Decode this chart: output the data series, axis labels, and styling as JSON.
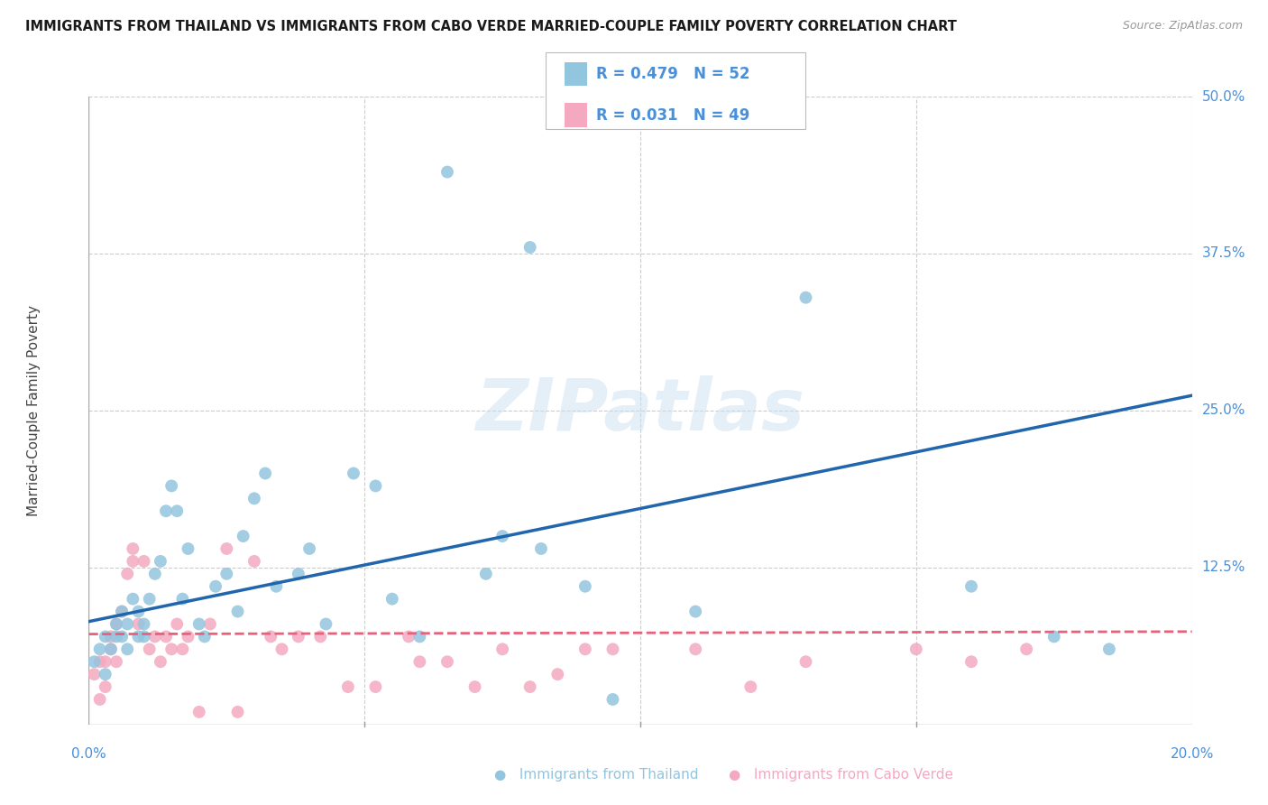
{
  "title": "IMMIGRANTS FROM THAILAND VS IMMIGRANTS FROM CABO VERDE MARRIED-COUPLE FAMILY POVERTY CORRELATION CHART",
  "source": "Source: ZipAtlas.com",
  "ylabel": "Married-Couple Family Poverty",
  "xlim": [
    0,
    0.2
  ],
  "ylim": [
    0,
    0.5
  ],
  "xticks": [
    0.0,
    0.05,
    0.1,
    0.15,
    0.2
  ],
  "yticks": [
    0.0,
    0.125,
    0.25,
    0.375,
    0.5
  ],
  "yticklabels": [
    "",
    "12.5%",
    "25.0%",
    "37.5%",
    "50.0%"
  ],
  "thailand_color": "#92c5de",
  "caboverde_color": "#f4a9c0",
  "trend_thailand_color": "#2166ac",
  "trend_caboverde_color": "#e8607a",
  "R_thailand": 0.479,
  "N_thailand": 52,
  "R_caboverde": 0.031,
  "N_caboverde": 49,
  "watermark": "ZIPatlas",
  "background_color": "#ffffff",
  "grid_color": "#cccccc",
  "title_color": "#1a1a1a",
  "axis_label_color": "#4a90d9",
  "thailand_x": [
    0.001,
    0.002,
    0.003,
    0.003,
    0.004,
    0.005,
    0.005,
    0.006,
    0.006,
    0.007,
    0.007,
    0.008,
    0.009,
    0.009,
    0.01,
    0.01,
    0.011,
    0.012,
    0.013,
    0.014,
    0.015,
    0.016,
    0.017,
    0.018,
    0.02,
    0.021,
    0.023,
    0.025,
    0.027,
    0.028,
    0.03,
    0.032,
    0.034,
    0.038,
    0.04,
    0.043,
    0.048,
    0.052,
    0.055,
    0.06,
    0.065,
    0.072,
    0.075,
    0.08,
    0.082,
    0.09,
    0.095,
    0.11,
    0.13,
    0.16,
    0.175,
    0.185
  ],
  "thailand_y": [
    0.05,
    0.06,
    0.04,
    0.07,
    0.06,
    0.07,
    0.08,
    0.07,
    0.09,
    0.06,
    0.08,
    0.1,
    0.07,
    0.09,
    0.07,
    0.08,
    0.1,
    0.12,
    0.13,
    0.17,
    0.19,
    0.17,
    0.1,
    0.14,
    0.08,
    0.07,
    0.11,
    0.12,
    0.09,
    0.15,
    0.18,
    0.2,
    0.11,
    0.12,
    0.14,
    0.08,
    0.2,
    0.19,
    0.1,
    0.07,
    0.44,
    0.12,
    0.15,
    0.38,
    0.14,
    0.11,
    0.02,
    0.09,
    0.34,
    0.11,
    0.07,
    0.06
  ],
  "caboverde_x": [
    0.001,
    0.002,
    0.002,
    0.003,
    0.003,
    0.004,
    0.004,
    0.005,
    0.005,
    0.006,
    0.007,
    0.008,
    0.008,
    0.009,
    0.01,
    0.011,
    0.012,
    0.013,
    0.014,
    0.015,
    0.016,
    0.017,
    0.018,
    0.02,
    0.022,
    0.025,
    0.027,
    0.03,
    0.033,
    0.035,
    0.038,
    0.042,
    0.047,
    0.052,
    0.058,
    0.06,
    0.065,
    0.07,
    0.075,
    0.08,
    0.085,
    0.09,
    0.095,
    0.11,
    0.12,
    0.13,
    0.15,
    0.16,
    0.17
  ],
  "caboverde_y": [
    0.04,
    0.05,
    0.02,
    0.03,
    0.05,
    0.06,
    0.07,
    0.05,
    0.08,
    0.09,
    0.12,
    0.13,
    0.14,
    0.08,
    0.13,
    0.06,
    0.07,
    0.05,
    0.07,
    0.06,
    0.08,
    0.06,
    0.07,
    0.01,
    0.08,
    0.14,
    0.01,
    0.13,
    0.07,
    0.06,
    0.07,
    0.07,
    0.03,
    0.03,
    0.07,
    0.05,
    0.05,
    0.03,
    0.06,
    0.03,
    0.04,
    0.06,
    0.06,
    0.06,
    0.03,
    0.05,
    0.06,
    0.05,
    0.06
  ],
  "trend_thailand_x0": 0.0,
  "trend_thailand_y0": 0.082,
  "trend_thailand_x1": 0.2,
  "trend_thailand_y1": 0.262,
  "trend_caboverde_x0": 0.0,
  "trend_caboverde_y0": 0.072,
  "trend_caboverde_x1": 0.2,
  "trend_caboverde_y1": 0.074
}
